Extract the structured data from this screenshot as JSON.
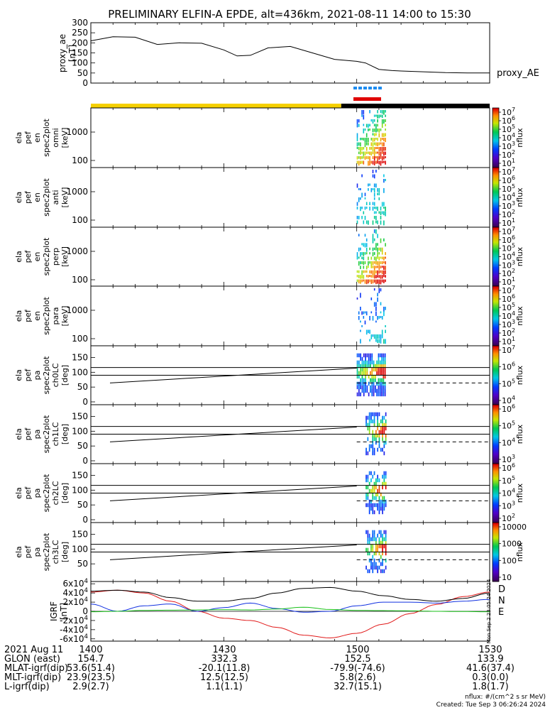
{
  "title": "PRELIMINARY ELFIN-A EPDE, alt=436km, 2021-08-11 14:00 to 15:30",
  "chart_data": [
    {
      "type": "line",
      "name": "proxy_ae",
      "ylabel": [
        "proxy_ae",
        "[nT]"
      ],
      "yticks": [
        "300",
        "250",
        "200",
        "150",
        "100",
        "50",
        "0"
      ],
      "ylim": [
        0,
        300
      ],
      "series_label": "proxy_AE",
      "x_minutes": [
        0,
        5,
        10,
        15,
        20,
        25,
        30,
        33,
        36,
        40,
        45,
        50,
        55,
        60,
        62,
        65,
        68,
        70,
        75,
        80,
        85,
        90
      ],
      "values": [
        210,
        230,
        228,
        192,
        200,
        198,
        165,
        135,
        138,
        175,
        182,
        150,
        118,
        108,
        100,
        68,
        62,
        60,
        56,
        52,
        50,
        50
      ]
    },
    {
      "type": "heatmap",
      "ylabel": [
        "ela",
        "pef",
        "en",
        "spec2plot",
        "omni",
        "[keV]"
      ],
      "yticks": [
        "1000",
        "100"
      ],
      "colorbar_ticks": [
        "10^7",
        "10^6",
        "10^5",
        "10^4",
        "10^3",
        "10^2",
        "10^1"
      ],
      "colorbar_label": "nflux"
    },
    {
      "type": "heatmap",
      "ylabel": [
        "ela",
        "pef",
        "en",
        "spec2plot",
        "anti",
        "[keV]"
      ],
      "yticks": [
        "1000",
        "100"
      ],
      "colorbar_ticks": [
        "10^7",
        "10^6",
        "10^5",
        "10^4",
        "10^3",
        "10^2",
        "10^1"
      ],
      "colorbar_label": "nflux"
    },
    {
      "type": "heatmap",
      "ylabel": [
        "ela",
        "pef",
        "en",
        "spec2plot",
        "perp",
        "[keV]"
      ],
      "yticks": [
        "1000",
        "100"
      ],
      "colorbar_ticks": [
        "10^7",
        "10^6",
        "10^5",
        "10^4",
        "10^3",
        "10^2",
        "10^1"
      ],
      "colorbar_label": "nflux"
    },
    {
      "type": "heatmap",
      "ylabel": [
        "ela",
        "pef",
        "en",
        "spec2plot",
        "para",
        "[keV]"
      ],
      "yticks": [
        "1000",
        "100"
      ],
      "colorbar_ticks": [
        "10^7",
        "10^6",
        "10^5",
        "10^4",
        "10^3",
        "10^2",
        "10^1"
      ],
      "colorbar_label": "nflux"
    },
    {
      "type": "heatmap",
      "ylabel": [
        "ela",
        "pef",
        "pa",
        "spec2plot",
        "ch0LC",
        "[deg]"
      ],
      "yticks": [
        "150",
        "100",
        "50",
        "0"
      ],
      "colorbar_ticks": [
        "10^7",
        "10^6",
        "10^5",
        "10^4"
      ],
      "colorbar_label": "nflux"
    },
    {
      "type": "heatmap",
      "ylabel": [
        "ela",
        "pef",
        "pa",
        "spec2plot",
        "ch1LC",
        "[deg]"
      ],
      "yticks": [
        "150",
        "100",
        "50",
        "0"
      ],
      "colorbar_ticks": [
        "10^6",
        "10^5",
        "10^4",
        "10^3"
      ],
      "colorbar_label": "nflux"
    },
    {
      "type": "heatmap",
      "ylabel": [
        "ela",
        "pef",
        "pa",
        "spec2plot",
        "ch2LC",
        "[deg]"
      ],
      "yticks": [
        "150",
        "100",
        "50",
        "0"
      ],
      "colorbar_ticks": [
        "10^6",
        "10^5",
        "10^4",
        "10^3",
        "10^2"
      ],
      "colorbar_label": "nflux"
    },
    {
      "type": "heatmap",
      "ylabel": [
        "ela",
        "pef",
        "pa",
        "spec2plot",
        "ch3LC",
        "[deg]"
      ],
      "yticks": [
        "150",
        "100",
        "50"
      ],
      "colorbar_ticks": [
        "10000",
        "1000",
        "100",
        "10"
      ],
      "colorbar_label": "nflux"
    },
    {
      "type": "line",
      "name": "IGRF",
      "ylabel": [
        "IGRF",
        "[nT]"
      ],
      "yticks": [
        "6x10^4",
        "4x10^4",
        "2x10^4",
        "0",
        "-2x10^4",
        "-4x10^4",
        "-6x10^4"
      ],
      "ylim": [
        -65000,
        65000
      ],
      "legend": [
        "D",
        "N",
        "E"
      ],
      "side_label": "Mon Sep 2 23:05:24 2024",
      "x_minutes": [
        0,
        6,
        12,
        18,
        24,
        30,
        36,
        42,
        48,
        54,
        60,
        66,
        72,
        78,
        84,
        90
      ],
      "series": [
        {
          "name": "D",
          "color": "#e11919",
          "values": [
            42000,
            46000,
            40000,
            22000,
            0,
            -15000,
            -20000,
            -35000,
            -52000,
            -58000,
            -48000,
            -28000,
            -5000,
            15000,
            32000,
            42000
          ]
        },
        {
          "name": "N",
          "color": "#1030e0",
          "values": [
            16000,
            0,
            12000,
            16000,
            0,
            8000,
            18000,
            6000,
            -2000,
            0,
            12000,
            20000,
            20000,
            18000,
            22000,
            26000
          ]
        },
        {
          "name": "E",
          "color": "#18c018",
          "values": [
            -1000,
            0,
            2000,
            2500,
            3000,
            3500,
            3000,
            5000,
            9000,
            4000,
            2000,
            1500,
            1000,
            0,
            -500,
            -1000
          ]
        },
        {
          "name": "total",
          "color": "#000000",
          "values": [
            44000,
            46000,
            42000,
            30000,
            22000,
            22000,
            28000,
            40000,
            50000,
            52000,
            44000,
            34000,
            26000,
            22000,
            28000,
            40000
          ]
        }
      ]
    }
  ],
  "footer": {
    "rows": [
      {
        "label": "2021 Aug 11",
        "values": [
          "1400",
          "1430",
          "1500",
          "1530"
        ]
      },
      {
        "label": "GLON (east)",
        "values": [
          "154.7",
          "332.3",
          "152.5",
          "133.9"
        ]
      },
      {
        "label": "MLAT-igrf(dip)",
        "values": [
          "53.6(51.4)",
          "-20.1(11.8)",
          "-79.9(-74.6)",
          "41.6(37.4)"
        ]
      },
      {
        "label": "MLT-igrf(dip)",
        "values": [
          "23.9(23.5)",
          "12.5(12.5)",
          "5.8(2.6)",
          "0.3(0.0)"
        ]
      },
      {
        "label": "L-igrf(dip)",
        "values": [
          "2.9(2.7)",
          "1.1(1.1)",
          "32.7(15.1)",
          "1.8(1.7)"
        ]
      }
    ],
    "units_note": "nflux: #/(cm^2 s sr MeV)",
    "created": "Created: Tue Sep  3 06:26:24 2024"
  },
  "colors": {
    "sunlit_bar": "#f5d000",
    "eclipse_bar": "#000000",
    "dash_blue": "#1e8cf0",
    "sci_red": "#e00000"
  }
}
